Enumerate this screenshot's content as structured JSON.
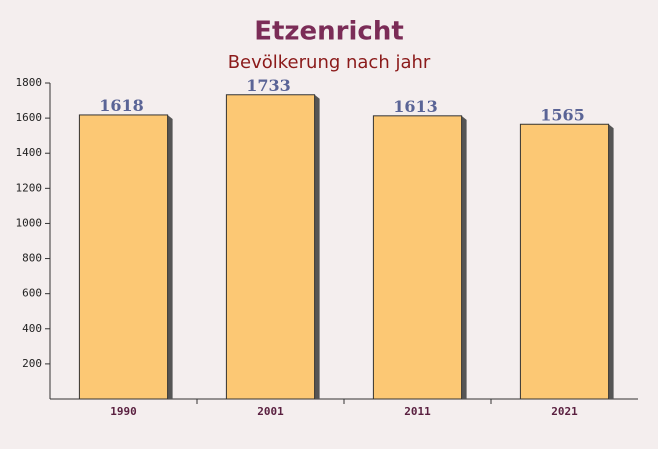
{
  "chart_data": {
    "type": "bar",
    "title": "Etzenricht",
    "subtitle": "Bevölkerung nach jahr",
    "categories": [
      "1990",
      "2001",
      "2011",
      "2021"
    ],
    "values": [
      1618,
      1733,
      1613,
      1565
    ],
    "color": "#fdc15e",
    "ylim": [
      0,
      1800
    ],
    "yticks": [
      200,
      400,
      600,
      800,
      1000,
      1200,
      1400,
      1600,
      1800
    ]
  }
}
